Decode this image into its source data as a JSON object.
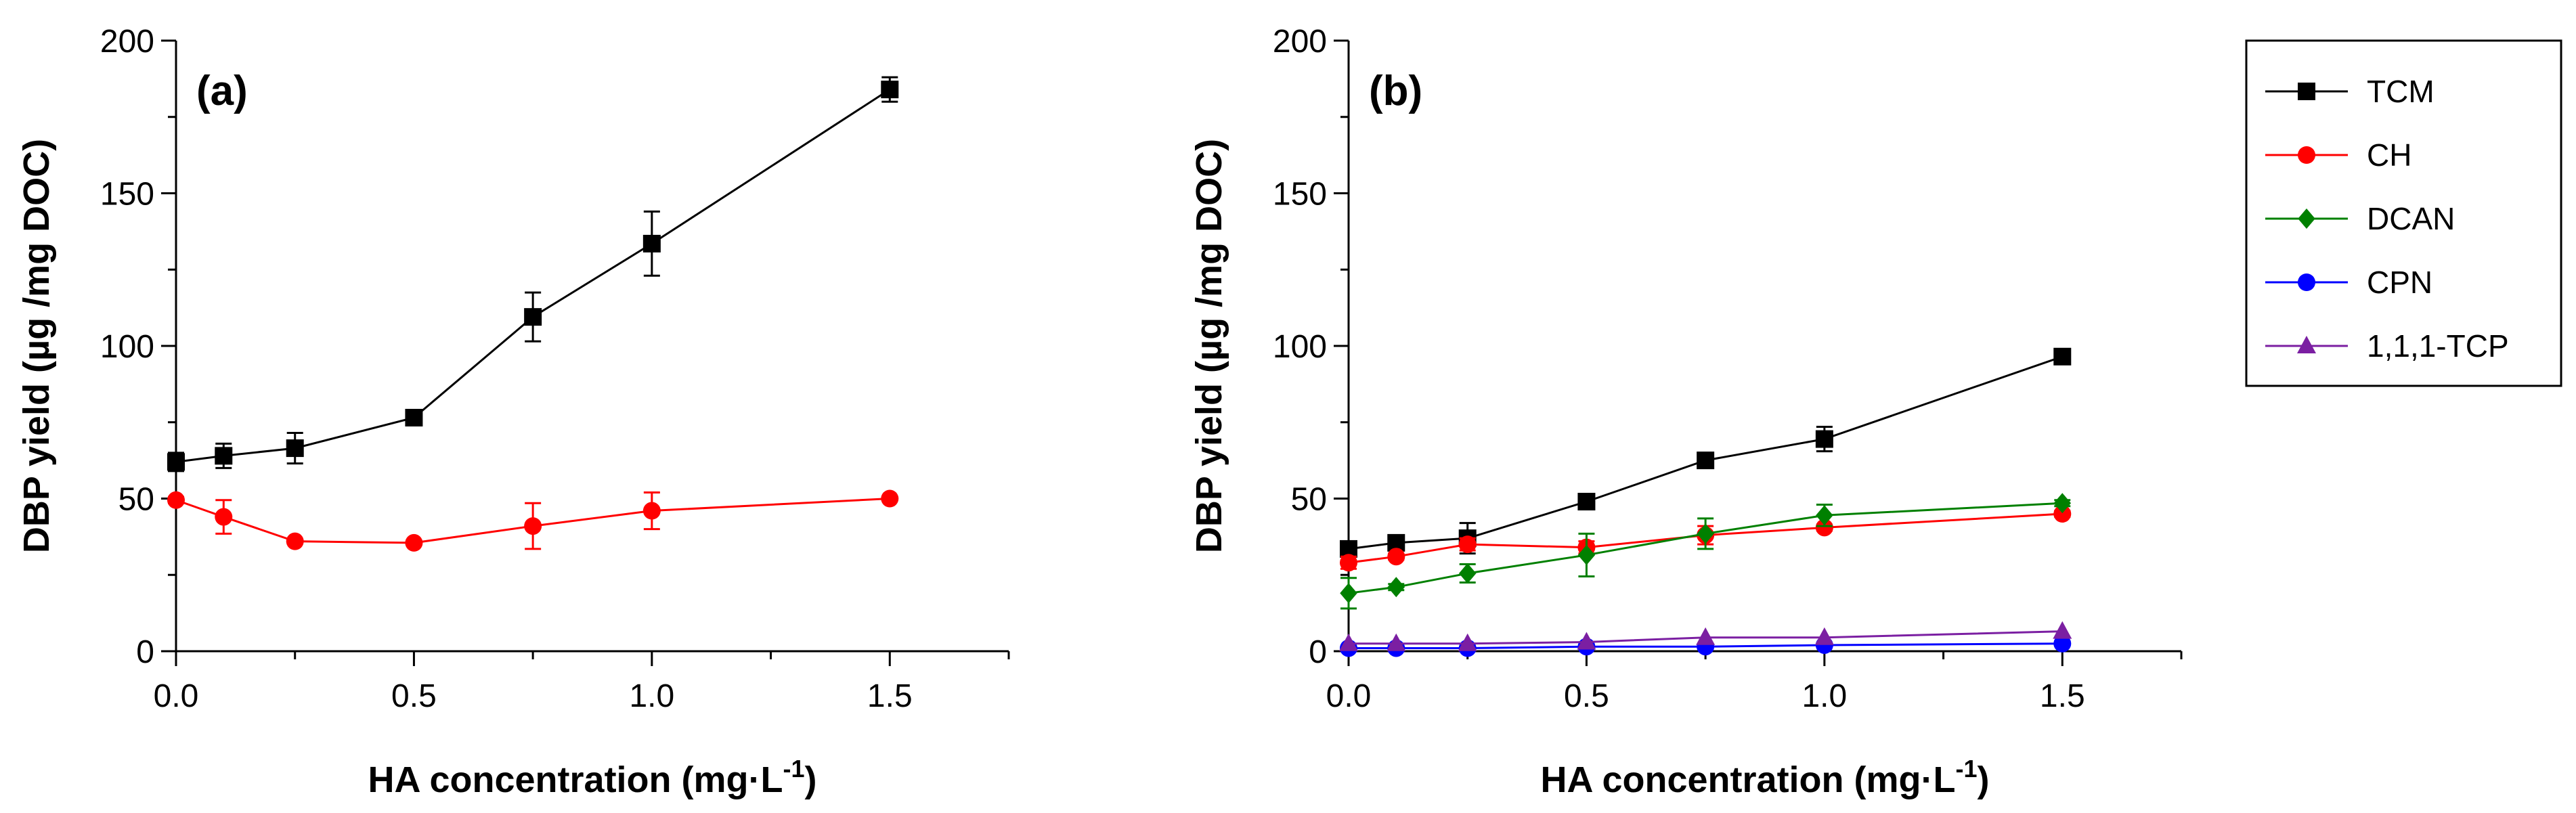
{
  "chart_data": [
    {
      "type": "line",
      "panel_label": "(a)",
      "xlabel": "HA concentration (mg·L",
      "xlabel_sup": "-1",
      "xlabel_end": ")",
      "ylabel": "DBP yield (µg /mg DOC)",
      "xlim": [
        0,
        1.75
      ],
      "ylim": [
        0,
        200
      ],
      "xticks": [
        "0.0",
        "0.5",
        "1.0",
        "1.5"
      ],
      "yticks": [
        "0",
        "50",
        "100",
        "150",
        "200"
      ],
      "grid": false,
      "series": [
        {
          "name": "TCM",
          "color": "#000000",
          "marker": "square",
          "x": [
            0,
            0.1,
            0.25,
            0.5,
            0.75,
            1.0,
            1.5
          ],
          "y": [
            62,
            64,
            66.5,
            76.5,
            109.5,
            133.5,
            184
          ],
          "err": [
            3,
            4,
            5,
            1,
            8,
            10.5,
            4
          ]
        },
        {
          "name": "CH",
          "color": "#ff0000",
          "marker": "circle",
          "x": [
            0,
            0.1,
            0.25,
            0.5,
            0.75,
            1.0,
            1.5
          ],
          "y": [
            49.5,
            44,
            36,
            35.5,
            41,
            46,
            50
          ],
          "err": [
            1,
            5.5,
            0.5,
            0.5,
            7.5,
            6,
            0.5
          ]
        }
      ]
    },
    {
      "type": "line",
      "panel_label": "(b)",
      "xlabel": "HA concentration (mg·L",
      "xlabel_sup": "-1",
      "xlabel_end": ")",
      "ylabel": "DBP yield (µg /mg DOC)",
      "xlim": [
        0,
        1.75
      ],
      "ylim": [
        0,
        200
      ],
      "xticks": [
        "0.0",
        "0.5",
        "1.0",
        "1.5"
      ],
      "yticks": [
        "0",
        "50",
        "100",
        "150",
        "200"
      ],
      "grid": false,
      "legend_position": "outside-right",
      "series": [
        {
          "name": "TCM",
          "color": "#000000",
          "marker": "square",
          "x": [
            0,
            0.1,
            0.25,
            0.5,
            0.75,
            1.0,
            1.5
          ],
          "y": [
            33.5,
            35.5,
            37,
            49,
            62.5,
            69.5,
            96.5
          ],
          "err": [
            2.5,
            2,
            5,
            1,
            2.5,
            4,
            1.5
          ]
        },
        {
          "name": "CH",
          "color": "#ff0000",
          "marker": "circle",
          "x": [
            0,
            0.1,
            0.25,
            0.5,
            0.75,
            1.0,
            1.5
          ],
          "y": [
            29,
            31,
            35,
            34,
            38,
            40.5,
            45
          ],
          "err": [
            2,
            1,
            2,
            2,
            3,
            1,
            1
          ]
        },
        {
          "name": "DCAN",
          "color": "#008000",
          "marker": "diamond",
          "x": [
            0,
            0.1,
            0.25,
            0.5,
            0.75,
            1.0,
            1.5
          ],
          "y": [
            19,
            21,
            25.5,
            31.5,
            38.5,
            44.5,
            48.5
          ],
          "err": [
            5,
            1,
            3,
            7,
            5,
            3.5,
            1
          ]
        },
        {
          "name": "CPN",
          "color": "#0000ff",
          "marker": "circle",
          "x": [
            0,
            0.1,
            0.25,
            0.5,
            0.75,
            1.0,
            1.5
          ],
          "y": [
            1,
            1,
            1,
            1.5,
            1.5,
            2,
            2.5
          ],
          "err": [
            0.3,
            0.3,
            0.3,
            0.3,
            0.3,
            0.3,
            0.3
          ]
        },
        {
          "name": "1,1,1-TCP",
          "color": "#7b1fa2",
          "marker": "triangle",
          "x": [
            0,
            0.1,
            0.25,
            0.5,
            0.75,
            1.0,
            1.5
          ],
          "y": [
            2.5,
            2.5,
            2.5,
            3,
            4.5,
            4.5,
            6.5
          ],
          "err": [
            0.3,
            0.3,
            0.3,
            0.3,
            0.3,
            0.3,
            0.3
          ]
        }
      ]
    }
  ]
}
